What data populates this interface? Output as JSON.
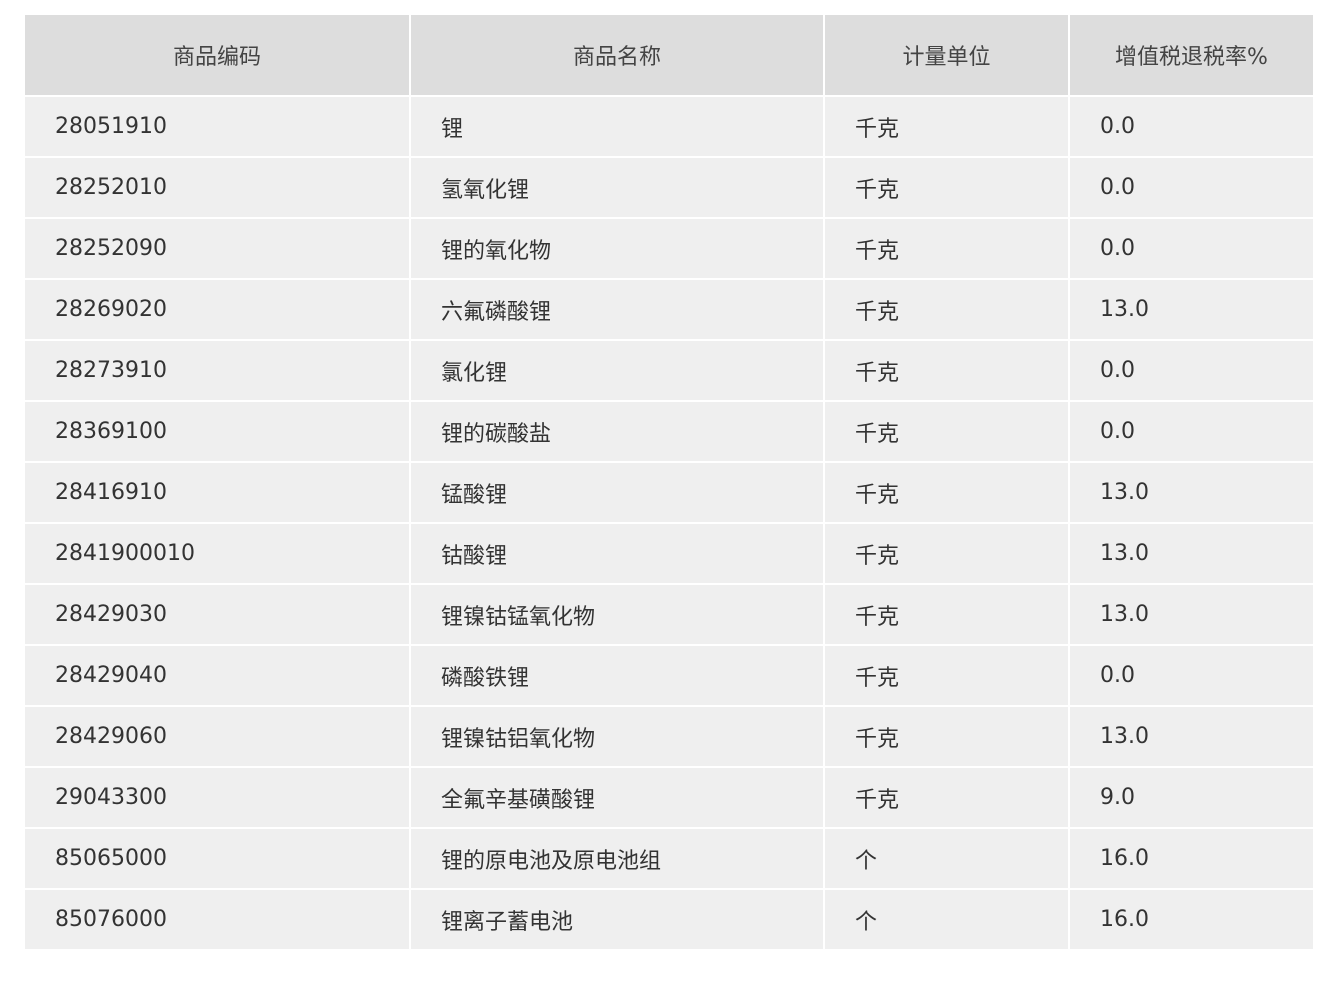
{
  "table": {
    "headers": [
      "商品编码",
      "商品名称",
      "计量单位",
      "增值税退税率%"
    ],
    "rows": [
      [
        "28051910",
        "锂",
        "千克",
        "0.0"
      ],
      [
        "28252010",
        "氢氧化锂",
        "千克",
        "0.0"
      ],
      [
        "28252090",
        "锂的氧化物",
        "千克",
        "0.0"
      ],
      [
        "28269020",
        "六氟磷酸锂",
        "千克",
        "13.0"
      ],
      [
        "28273910",
        "氯化锂",
        "千克",
        "0.0"
      ],
      [
        "28369100",
        "锂的碳酸盐",
        "千克",
        "0.0"
      ],
      [
        "28416910",
        "锰酸锂",
        "千克",
        "13.0"
      ],
      [
        "2841900010",
        "钴酸锂",
        "千克",
        "13.0"
      ],
      [
        "28429030",
        "锂镍钴锰氧化物",
        "千克",
        "13.0"
      ],
      [
        "28429040",
        "磷酸铁锂",
        "千克",
        "0.0"
      ],
      [
        "28429060",
        "锂镍钴铝氧化物",
        "千克",
        "13.0"
      ],
      [
        "29043300",
        "全氟辛基磺酸锂",
        "千克",
        "9.0"
      ],
      [
        "85065000",
        "锂的原电池及原电池组",
        "个",
        "16.0"
      ],
      [
        "85076000",
        "锂离子蓄电池",
        "个",
        "16.0"
      ]
    ]
  }
}
